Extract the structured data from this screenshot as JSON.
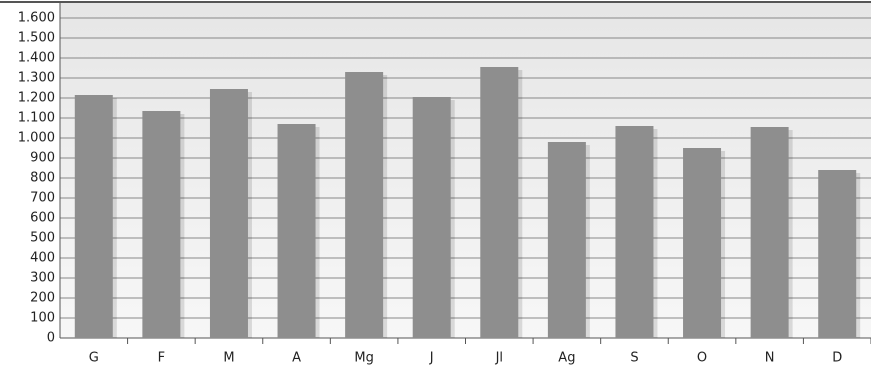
{
  "chart_data": {
    "type": "bar",
    "categories": [
      "G",
      "F",
      "M",
      "A",
      "Mg",
      "J",
      "Jl",
      "Ag",
      "S",
      "O",
      "N",
      "D"
    ],
    "values": [
      1215,
      1135,
      1245,
      1070,
      1330,
      1205,
      1355,
      980,
      1060,
      950,
      1055,
      840
    ],
    "color": "#8e8e8e",
    "ylim": [
      0,
      1600
    ],
    "yticks": [
      0,
      100,
      200,
      300,
      400,
      500,
      600,
      700,
      800,
      900,
      {
        "value": 1000,
        "label": "1.000"
      },
      {
        "value": 1100,
        "label": "1.100"
      },
      {
        "value": 1200,
        "label": "1.200"
      },
      {
        "value": 1300,
        "label": "1.300"
      },
      {
        "value": 1400,
        "label": "1.400"
      },
      {
        "value": 1500,
        "label": "1.500"
      },
      {
        "value": 1600,
        "label": "1.600"
      }
    ],
    "grid": true
  }
}
